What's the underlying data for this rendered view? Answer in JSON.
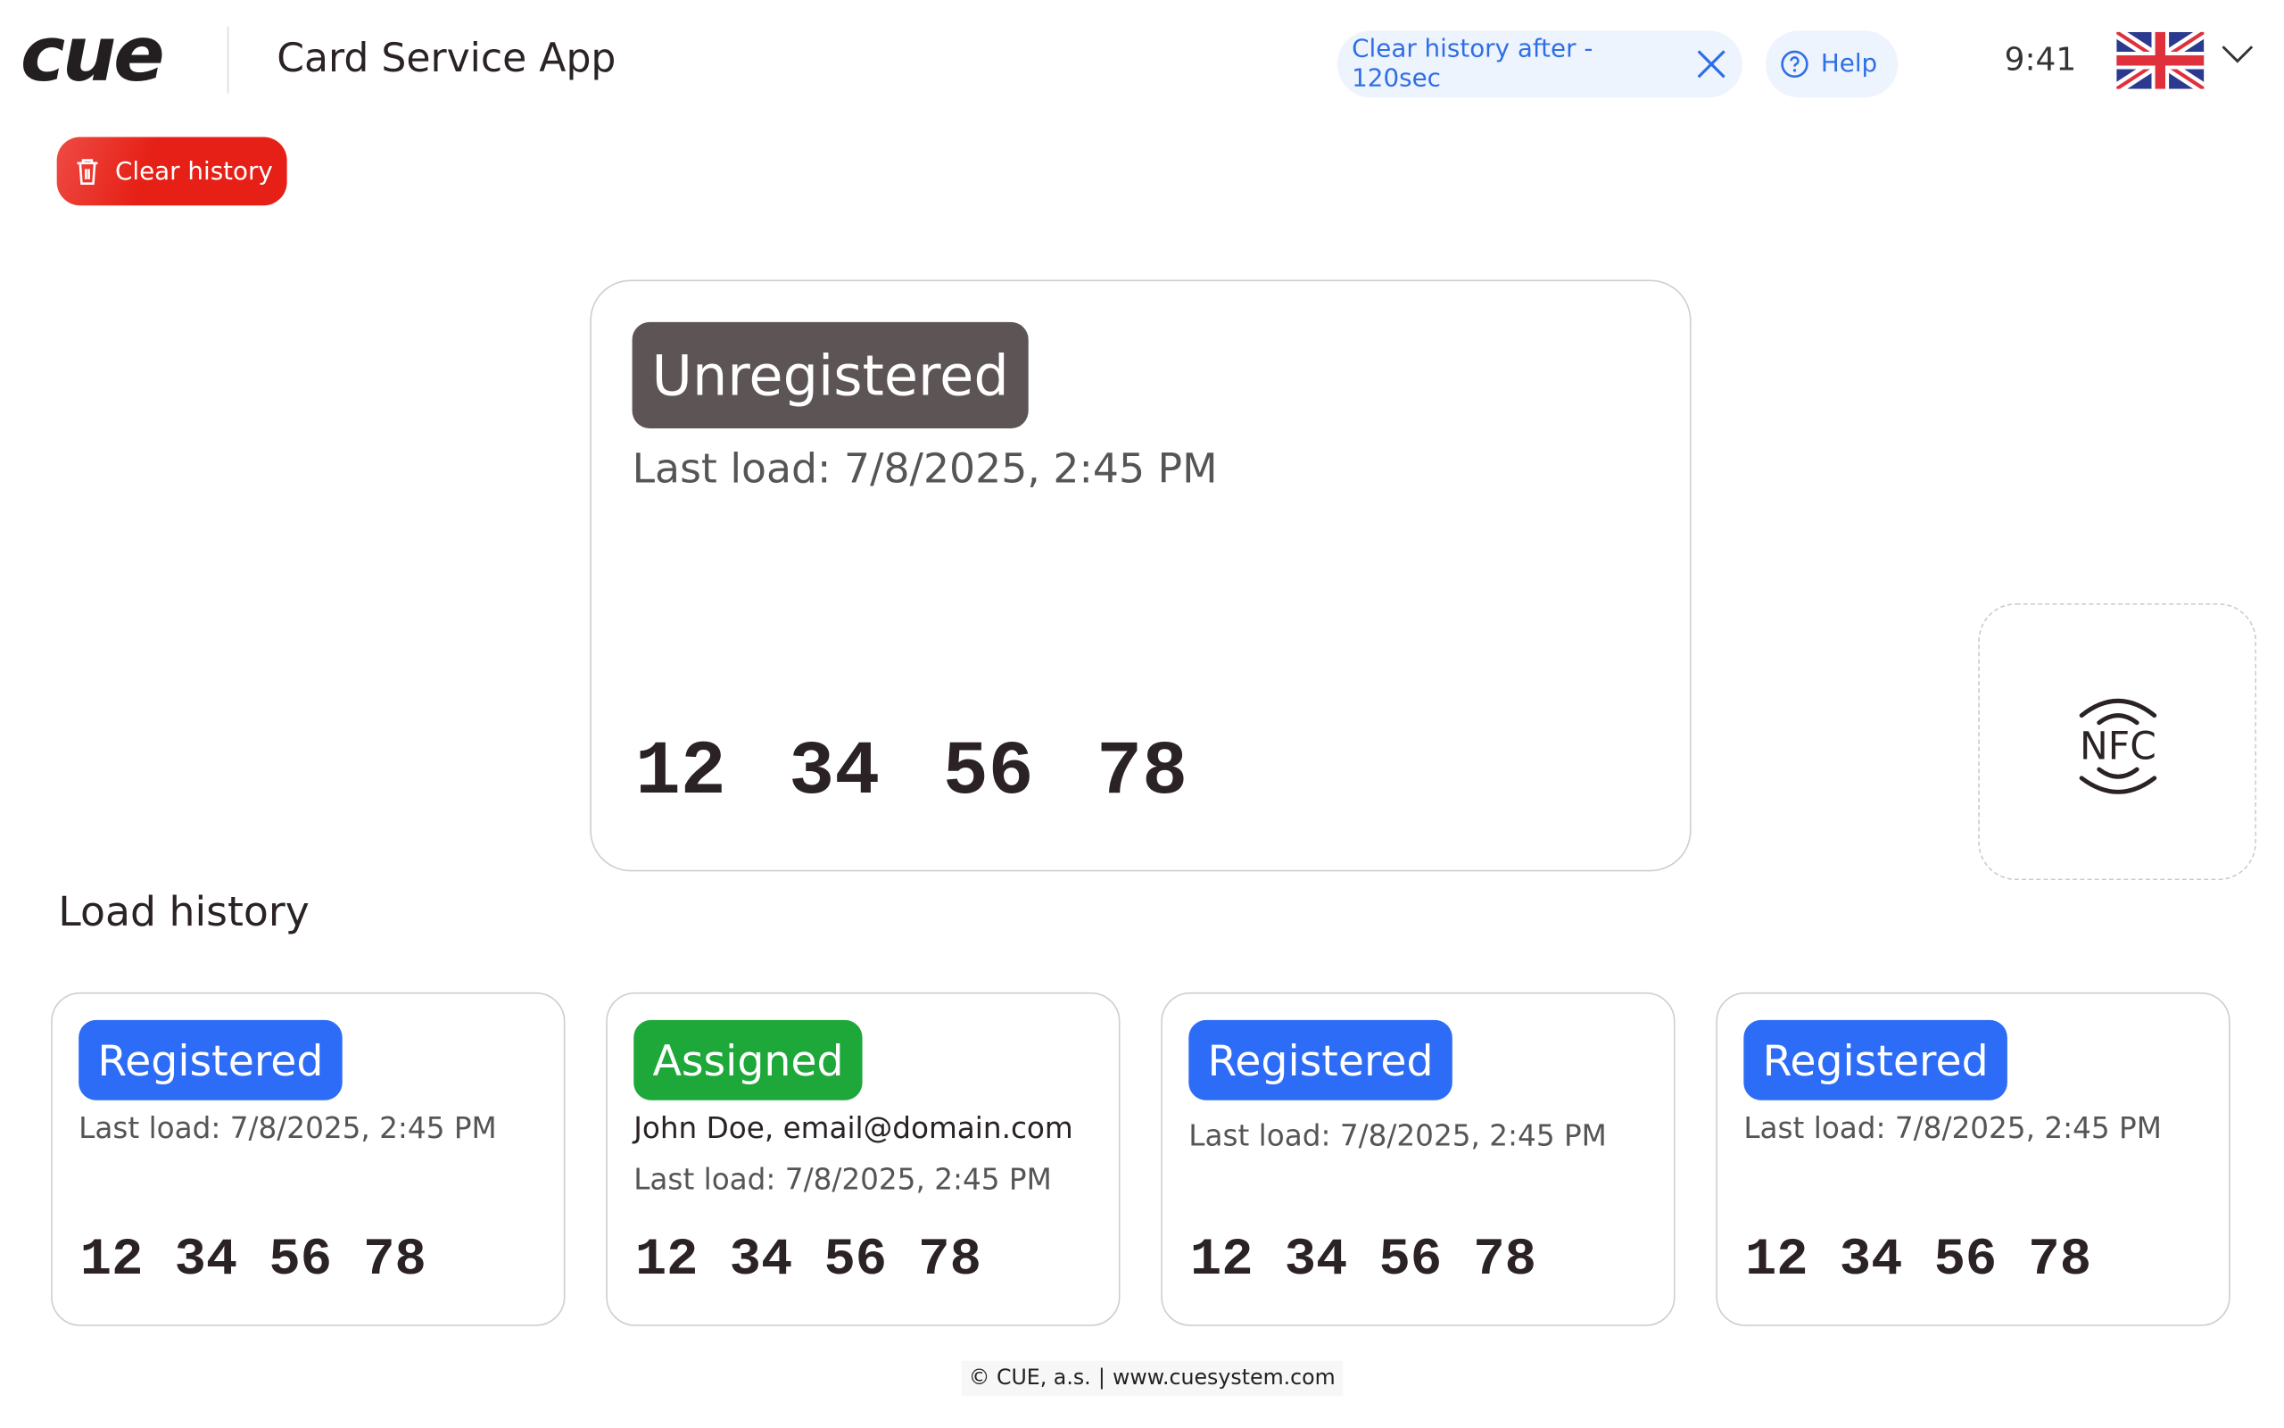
{
  "header": {
    "logo_text": "cue",
    "app_title": "Card Service App",
    "clear_history_timer": "Clear history after - 120sec",
    "help_label": "Help",
    "time": "9:41",
    "language_icon": "uk-flag-icon"
  },
  "toolbar": {
    "clear_history_label": "Clear history"
  },
  "current_card": {
    "status": "Unregistered",
    "status_color": "#5d5456",
    "last_load": "Last load: 7/8/2025, 2:45 PM",
    "number": "12 34 56 78"
  },
  "nfc": {
    "label": "NFC"
  },
  "history": {
    "title": "Load history",
    "items": [
      {
        "status": "Registered",
        "status_color": "#2d6cf6",
        "owner": "",
        "last_load": "Last load: 7/8/2025, 2:45 PM",
        "number": "12 34 56 78"
      },
      {
        "status": "Assigned",
        "status_color": "#1fa83a",
        "owner": "John Doe, email@domain.com",
        "last_load": "Last load: 7/8/2025, 2:45 PM",
        "number": "12 34 56 78"
      },
      {
        "status": "Registered",
        "status_color": "#2d6cf6",
        "owner": "",
        "last_load": "Last load: 7/8/2025, 2:45 PM",
        "number": "12 34 56 78"
      },
      {
        "status": "Registered",
        "status_color": "#2d6cf6",
        "owner": "",
        "last_load": "Last load: 7/8/2025, 2:45 PM",
        "number": "12 34 56 78"
      }
    ]
  },
  "footer": {
    "copyright": "© CUE, a.s.",
    "website": "www.cuesystem.com"
  }
}
